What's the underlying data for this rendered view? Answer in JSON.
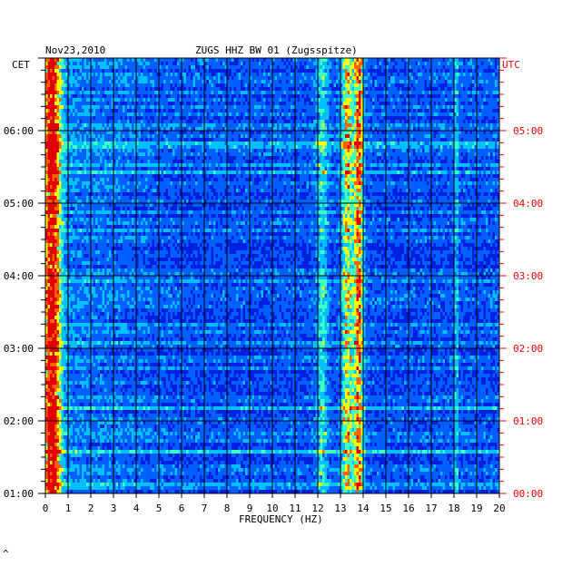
{
  "chart_data": {
    "type": "heatmap",
    "date": "Nov23,2010",
    "title": "ZUGS HHZ BW 01 (Zugsspitze)",
    "xlabel": "FREQUENCY (HZ)",
    "left_label": "CET",
    "right_label": "UTC",
    "xlim": [
      0,
      20
    ],
    "x_ticks": [
      "0",
      "1",
      "2",
      "3",
      "4",
      "5",
      "6",
      "7",
      "8",
      "9",
      "10",
      "11",
      "12",
      "13",
      "14",
      "15",
      "16",
      "17",
      "18",
      "19",
      "20"
    ],
    "left_ticks": [
      {
        "hour": 1,
        "label": "01:00"
      },
      {
        "hour": 2,
        "label": "02:00"
      },
      {
        "hour": 3,
        "label": "03:00"
      },
      {
        "hour": 4,
        "label": "04:00"
      },
      {
        "hour": 5,
        "label": "05:00"
      },
      {
        "hour": 6,
        "label": "06:00"
      }
    ],
    "right_ticks": [
      {
        "hour": 0,
        "label": "00:00"
      },
      {
        "hour": 1,
        "label": "01:00"
      },
      {
        "hour": 2,
        "label": "02:00"
      },
      {
        "hour": 3,
        "label": "03:00"
      },
      {
        "hour": 4,
        "label": "04:00"
      },
      {
        "hour": 5,
        "label": "05:00"
      }
    ],
    "time_range_cet_hours": [
      1,
      7
    ],
    "grid": true,
    "colormap": [
      "#0000a0",
      "#0020e0",
      "#0060ff",
      "#00c0ff",
      "#40ffc0",
      "#ffff00",
      "#ff6000",
      "#e00000"
    ],
    "energy_bands_hz": [
      {
        "center": 0.3,
        "width": 0.35,
        "intensity": 0.75
      },
      {
        "center": 13.3,
        "width": 0.25,
        "intensity": 0.45
      },
      {
        "center": 13.8,
        "width": 0.2,
        "intensity": 0.6
      },
      {
        "center": 12.2,
        "width": 0.25,
        "intensity": 0.25
      },
      {
        "center": 18.1,
        "width": 0.1,
        "intensity": 0.2
      }
    ],
    "colors": {
      "left_labels": "#000000",
      "right_labels": "#ff0000",
      "title": "#000000"
    }
  }
}
